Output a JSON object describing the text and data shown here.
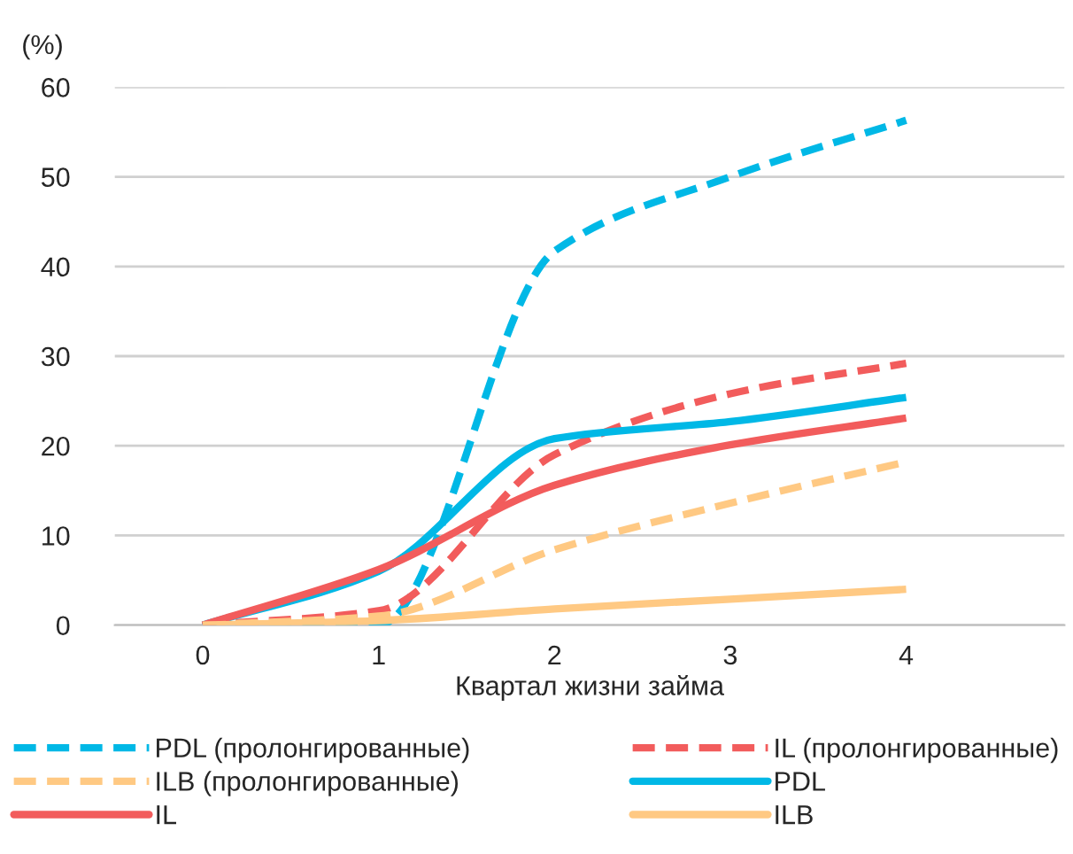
{
  "chart_data": {
    "type": "line",
    "ylabel": "(%)",
    "xlabel": "Квартал жизни займа",
    "categories": [
      "0",
      "1",
      "2",
      "3",
      "4"
    ],
    "ylim": [
      0,
      60
    ],
    "yticks": [
      0,
      10,
      20,
      30,
      40,
      50,
      60
    ],
    "grid": "y",
    "legend": "bottom",
    "marker": "none",
    "series": [
      {
        "name": "PDL (пролонгированные)",
        "color": "#00b8e6",
        "line_style": "dashed",
        "values": [
          0,
          0,
          41.7,
          50,
          56.3
        ]
      },
      {
        "name": "IL (пролонгированные)",
        "color": "#f25c5c",
        "line_style": "dashed",
        "values": [
          0,
          1.6,
          19,
          25.8,
          29.2
        ]
      },
      {
        "name": "ILB (пролонгированные)",
        "color": "#ffc983",
        "line_style": "dashed",
        "values": [
          0,
          1,
          8.4,
          13.6,
          18.2
        ]
      },
      {
        "name": "PDL",
        "color": "#00b8e6",
        "line_style": "solid",
        "values": [
          0,
          6,
          20.8,
          22.7,
          25.4
        ]
      },
      {
        "name": "IL",
        "color": "#f25c5c",
        "line_style": "solid",
        "values": [
          0,
          6.2,
          15.6,
          20.1,
          23.1
        ]
      },
      {
        "name": "ILB",
        "color": "#ffc983",
        "line_style": "solid",
        "values": [
          0,
          0.5,
          1.8,
          2.9,
          4
        ]
      }
    ]
  }
}
